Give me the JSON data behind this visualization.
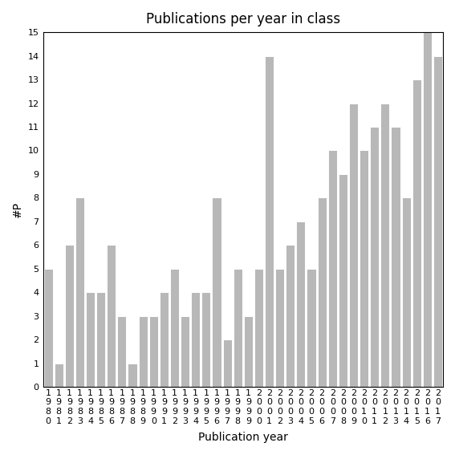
{
  "title": "Publications per year in class",
  "xlabel": "Publication year",
  "ylabel": "#P",
  "years": [
    "1980",
    "1981",
    "1982",
    "1983",
    "1984",
    "1985",
    "1986",
    "1987",
    "1988",
    "1989",
    "1990",
    "1991",
    "1992",
    "1993",
    "1994",
    "1995",
    "1996",
    "1997",
    "1998",
    "1999",
    "2000",
    "2001",
    "2002",
    "2003",
    "2004",
    "2005",
    "2006",
    "2007",
    "2008",
    "2009",
    "2010",
    "2011",
    "2012",
    "2013",
    "2014",
    "2015",
    "2016",
    "2017"
  ],
  "values": [
    5,
    1,
    6,
    8,
    4,
    4,
    6,
    3,
    1,
    3,
    3,
    4,
    5,
    3,
    4,
    4,
    8,
    2,
    5,
    3,
    5,
    14,
    5,
    6,
    7,
    5,
    8,
    10,
    9,
    12,
    10,
    11,
    12,
    11,
    8,
    13,
    15,
    14
  ],
  "bar_color": "#b8b8b8",
  "bar_edge_color": "#ffffff",
  "ylim": [
    0,
    15
  ],
  "yticks": [
    0,
    1,
    2,
    3,
    4,
    5,
    6,
    7,
    8,
    9,
    10,
    11,
    12,
    13,
    14,
    15
  ],
  "bg_color": "#ffffff",
  "title_fontsize": 12,
  "axis_label_fontsize": 10,
  "tick_fontsize": 8
}
